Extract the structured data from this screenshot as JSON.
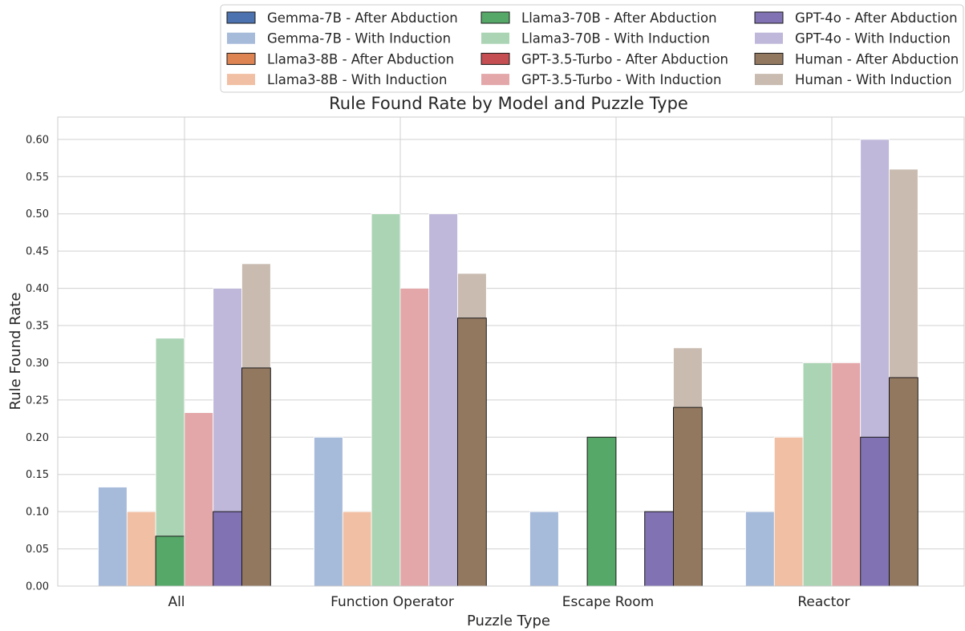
{
  "chart_data": {
    "type": "bar",
    "title": "Rule Found Rate by Model and Puzzle Type",
    "xlabel": "Puzzle Type",
    "ylabel": "Rule Found Rate",
    "ylim": [
      0,
      0.63
    ],
    "y_ticks": [
      "0.00",
      "0.05",
      "0.10",
      "0.15",
      "0.20",
      "0.25",
      "0.30",
      "0.35",
      "0.40",
      "0.45",
      "0.50",
      "0.55",
      "0.60"
    ],
    "categories": [
      "All",
      "Function Operator",
      "Escape Room",
      "Reactor"
    ],
    "grid": true,
    "legend_position": "top-right",
    "series": [
      {
        "name": "Gemma-7B - After Abduction",
        "values": [
          0.0,
          0.0,
          0.0,
          0.0
        ],
        "color": "#4c72b0"
      },
      {
        "name": "Gemma-7B - With Induction",
        "values": [
          0.133,
          0.2,
          0.1,
          0.1
        ],
        "color": "#a6bada"
      },
      {
        "name": "Llama3-8B - After Abduction",
        "values": [
          0.0,
          0.0,
          0.0,
          0.0
        ],
        "color": "#dd8452"
      },
      {
        "name": "Llama3-8B - With Induction",
        "values": [
          0.1,
          0.1,
          0.0,
          0.2
        ],
        "color": "#f1c0a4"
      },
      {
        "name": "Llama3-70B - After Abduction",
        "values": [
          0.067,
          0.0,
          0.2,
          0.0
        ],
        "color": "#55a868"
      },
      {
        "name": "Llama3-70B - With Induction",
        "values": [
          0.333,
          0.5,
          0.0,
          0.3
        ],
        "color": "#abd4b4"
      },
      {
        "name": "GPT-3.5-Turbo - After Abduction",
        "values": [
          0.0,
          0.0,
          0.0,
          0.0
        ],
        "color": "#c44e52"
      },
      {
        "name": "GPT-3.5-Turbo - With Induction",
        "values": [
          0.233,
          0.4,
          0.0,
          0.3
        ],
        "color": "#e3a7a9"
      },
      {
        "name": "GPT-4o - After Abduction",
        "values": [
          0.1,
          0.0,
          0.1,
          0.2
        ],
        "color": "#8172b3"
      },
      {
        "name": "GPT-4o - With Induction",
        "values": [
          0.4,
          0.5,
          0.0,
          0.6
        ],
        "color": "#c0b8da"
      },
      {
        "name": "Human - After Abduction",
        "values": [
          0.293,
          0.36,
          0.24,
          0.28
        ],
        "color": "#937860"
      },
      {
        "name": "Human - With Induction",
        "values": [
          0.433,
          0.42,
          0.32,
          0.56
        ],
        "color": "#c9bbb0"
      }
    ]
  }
}
